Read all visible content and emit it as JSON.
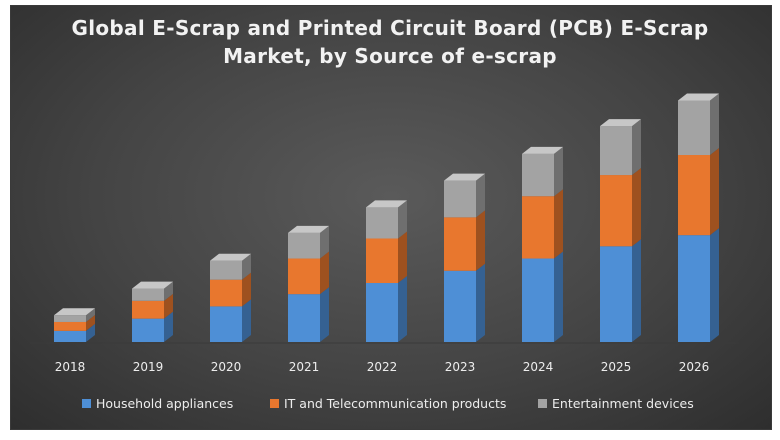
{
  "chart_data": {
    "type": "bar",
    "stacked": true,
    "style": "3d",
    "title_line1": "Global E-Scrap and Printed Circuit Board (PCB) E-Scrap",
    "title_line2": "Market, by Source of e-scrap",
    "categories": [
      "2018",
      "2019",
      "2020",
      "2021",
      "2022",
      "2023",
      "2024",
      "2025",
      "2026"
    ],
    "series": [
      {
        "name": "Household appliances",
        "color": "#4e8fd6",
        "values": [
          10,
          21,
          32,
          43,
          53,
          64,
          75,
          86,
          96
        ]
      },
      {
        "name": "IT and Telecommunication products",
        "color": "#e8772e",
        "values": [
          8,
          16,
          24,
          32,
          40,
          48,
          56,
          64,
          72
        ]
      },
      {
        "name": "Entertainment devices",
        "color": "#a3a3a3",
        "values": [
          6,
          11,
          17,
          23,
          28,
          33,
          38,
          44,
          49
        ]
      }
    ],
    "ylim": [
      0,
      230
    ],
    "legend_position": "bottom",
    "grid": false
  }
}
